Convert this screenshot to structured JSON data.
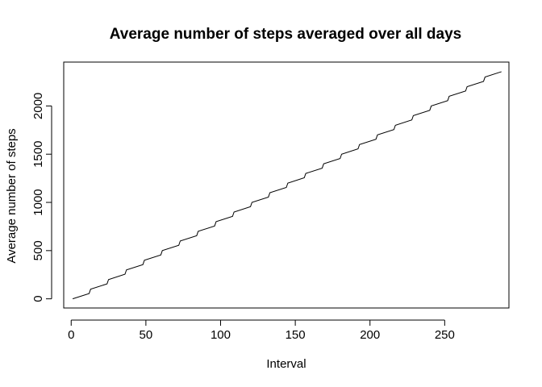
{
  "chart_data": {
    "type": "line",
    "title": "Average number of steps averaged over all days",
    "xlabel": "Interval",
    "ylabel": "Average number of steps",
    "xlim": [
      -5,
      293
    ],
    "ylim": [
      -95,
      2455
    ],
    "xticks": [
      0,
      50,
      100,
      150,
      200,
      250
    ],
    "yticks": [
      0,
      500,
      1000,
      1500,
      2000
    ],
    "grid": false,
    "legend": "none",
    "line_color": "#000000",
    "series": [
      {
        "x": [
          1,
          12,
          13,
          24,
          25,
          36,
          37,
          48,
          49,
          60,
          61,
          72,
          73,
          84,
          85,
          96,
          97,
          108,
          109,
          120,
          121,
          132,
          133,
          144,
          145,
          156,
          157,
          168,
          169,
          180,
          181,
          192,
          193,
          204,
          205,
          216,
          217,
          228,
          229,
          240,
          241,
          252,
          253,
          264,
          265,
          276,
          277,
          288
        ],
        "y": [
          0,
          55,
          100,
          155,
          200,
          255,
          300,
          355,
          400,
          455,
          500,
          555,
          600,
          655,
          700,
          755,
          800,
          855,
          900,
          955,
          1000,
          1055,
          1100,
          1155,
          1200,
          1255,
          1300,
          1355,
          1400,
          1455,
          1500,
          1555,
          1600,
          1655,
          1700,
          1755,
          1800,
          1855,
          1900,
          1955,
          2000,
          2055,
          2100,
          2155,
          2200,
          2255,
          2300,
          2355
        ]
      }
    ]
  }
}
